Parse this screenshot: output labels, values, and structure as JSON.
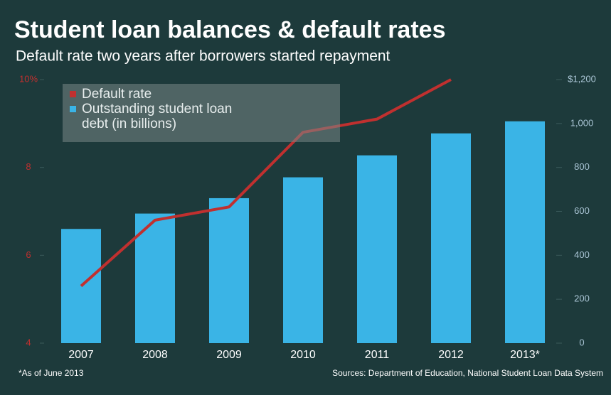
{
  "chart_data": {
    "type": "bar-line",
    "title": "Student loan balances & default rates",
    "subtitle": "Default rate two years after borrowers started repayment",
    "categories": [
      "2007",
      "2008",
      "2009",
      "2010",
      "2011",
      "2012",
      "2013*"
    ],
    "series": [
      {
        "name": "Default rate",
        "type": "line",
        "color": "#c0302f",
        "values": [
          5.3,
          6.8,
          7.1,
          8.8,
          9.1,
          10.0,
          null
        ]
      },
      {
        "name": "Outstanding student loan debt (in billions)",
        "type": "bar",
        "axis": "y2",
        "color": "#3ab4e6",
        "values": [
          520,
          590,
          660,
          755,
          855,
          955,
          1010
        ]
      }
    ],
    "ylim": [
      4,
      10
    ],
    "yticks": [
      4,
      6,
      8,
      {
        "value": 10,
        "label": "10%"
      }
    ],
    "y2lim": [
      0,
      1200
    ],
    "y2ticks": [
      0,
      200,
      400,
      600,
      800,
      {
        "value": 1000,
        "label": "1,000"
      },
      {
        "value": 1200,
        "label": "$1,200"
      }
    ],
    "footnote": "*As of June 2013",
    "source": "Sources: Department of Education, National Student Loan Data System"
  }
}
